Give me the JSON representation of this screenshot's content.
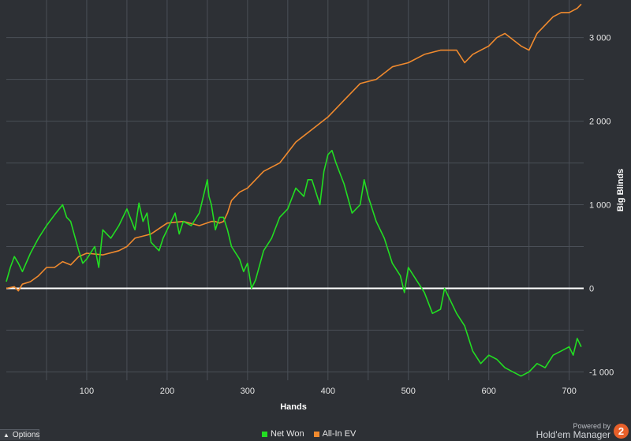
{
  "chart_data": {
    "type": "line",
    "xlabel": "Hands",
    "ylabel": "Big Blinds",
    "xlim": [
      0,
      718
    ],
    "ylim": [
      -1100,
      3450
    ],
    "x_ticks": [
      100,
      200,
      300,
      400,
      500,
      600,
      700
    ],
    "x_tick_labels": [
      "100",
      "200",
      "300",
      "400",
      "500",
      "600",
      "700"
    ],
    "y_ticks": [
      -1000,
      0,
      1000,
      2000,
      3000
    ],
    "y_tick_labels": [
      "-1 000",
      "0",
      "1 000",
      "2 000",
      "3 000"
    ],
    "grid": true,
    "legend_position": "bottom-center",
    "series": [
      {
        "name": "Net Won",
        "color": "#22dd22",
        "x": [
          0,
          5,
          10,
          15,
          20,
          30,
          40,
          50,
          60,
          70,
          75,
          80,
          90,
          95,
          100,
          110,
          115,
          120,
          130,
          140,
          150,
          160,
          165,
          170,
          175,
          180,
          190,
          195,
          200,
          210,
          215,
          220,
          230,
          240,
          250,
          252,
          255,
          260,
          265,
          270,
          275,
          280,
          290,
          295,
          300,
          305,
          310,
          320,
          330,
          340,
          350,
          360,
          370,
          375,
          380,
          390,
          395,
          400,
          405,
          410,
          420,
          430,
          440,
          445,
          450,
          460,
          470,
          480,
          490,
          495,
          500,
          510,
          520,
          530,
          540,
          545,
          550,
          560,
          570,
          575,
          580,
          590,
          600,
          610,
          620,
          630,
          640,
          650,
          660,
          670,
          680,
          690,
          700,
          705,
          710,
          715
        ],
        "values": [
          80,
          250,
          380,
          300,
          200,
          420,
          600,
          750,
          880,
          1000,
          850,
          800,
          450,
          300,
          350,
          500,
          250,
          700,
          600,
          750,
          950,
          700,
          1020,
          800,
          900,
          550,
          450,
          600,
          700,
          900,
          650,
          800,
          750,
          900,
          1300,
          1100,
          1000,
          700,
          850,
          850,
          700,
          500,
          350,
          200,
          300,
          0,
          100,
          450,
          600,
          850,
          950,
          1200,
          1100,
          1300,
          1300,
          1000,
          1400,
          1600,
          1650,
          1500,
          1250,
          900,
          1000,
          1300,
          1100,
          800,
          600,
          300,
          150,
          -50,
          250,
          100,
          -50,
          -300,
          -250,
          0,
          -100,
          -300,
          -450,
          -600,
          -750,
          -900,
          -800,
          -850,
          -950,
          -1000,
          -1050,
          -1000,
          -900,
          -950,
          -800,
          -750,
          -700,
          -800,
          -600,
          -700
        ]
      },
      {
        "name": "All-In EV",
        "color": "#f08a2e",
        "x": [
          0,
          10,
          15,
          20,
          30,
          40,
          50,
          60,
          70,
          80,
          90,
          100,
          120,
          140,
          150,
          160,
          180,
          200,
          220,
          240,
          255,
          260,
          265,
          270,
          275,
          280,
          290,
          300,
          320,
          340,
          360,
          380,
          400,
          420,
          440,
          460,
          480,
          500,
          520,
          540,
          560,
          570,
          580,
          600,
          610,
          620,
          640,
          650,
          660,
          670,
          680,
          690,
          700,
          710,
          715
        ],
        "values": [
          0,
          20,
          -30,
          50,
          80,
          150,
          250,
          250,
          320,
          280,
          380,
          420,
          400,
          450,
          500,
          600,
          650,
          780,
          800,
          750,
          800,
          800,
          780,
          800,
          900,
          1050,
          1150,
          1200,
          1400,
          1500,
          1750,
          1900,
          2050,
          2250,
          2450,
          2500,
          2650,
          2700,
          2800,
          2850,
          2850,
          2700,
          2800,
          2900,
          3000,
          3050,
          2900,
          2850,
          3050,
          3150,
          3250,
          3300,
          3300,
          3350,
          3400
        ]
      }
    ]
  },
  "footer": {
    "options_label": "Options",
    "powered_by": "Powered by",
    "brand": "Hold'em Manager",
    "brand_badge": "2"
  }
}
